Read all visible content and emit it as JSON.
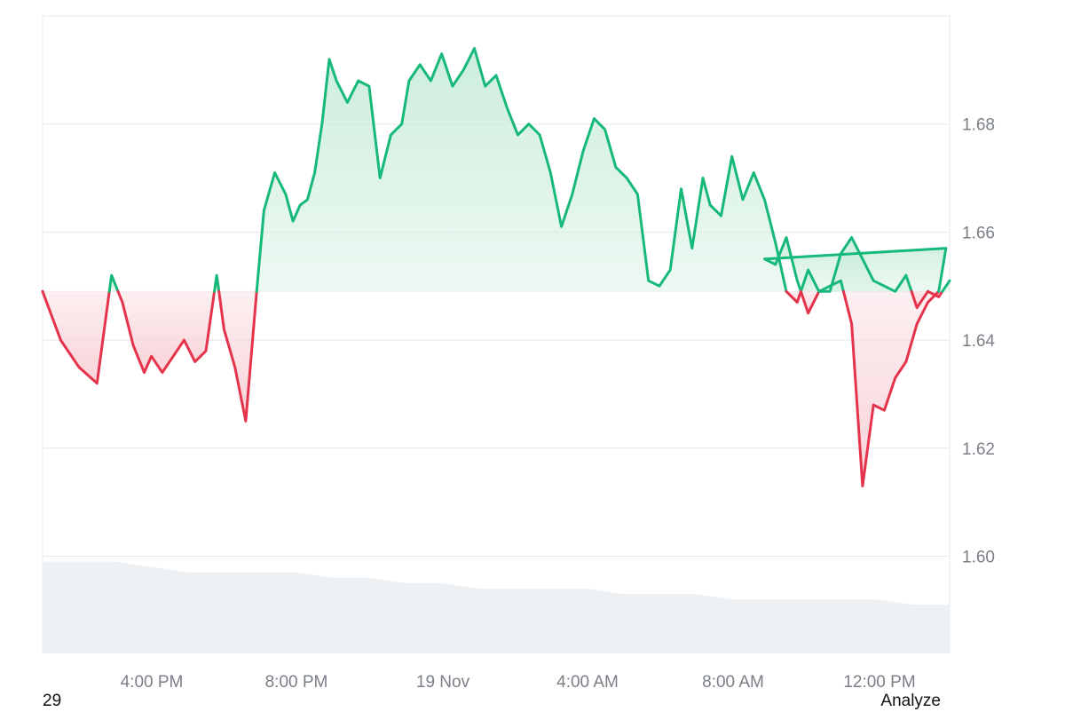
{
  "chart_data": {
    "type": "area",
    "baseline": 1.649,
    "ylim": [
      1.582,
      1.7
    ],
    "yticks": [
      "1.60",
      "1.62",
      "1.64",
      "1.66",
      "1.68"
    ],
    "xticks": [
      "4:00 PM",
      "8:00 PM",
      "19 Nov",
      "4:00 AM",
      "8:00 AM",
      "12:00 PM"
    ],
    "grid": true,
    "colors": {
      "up": "#16b979",
      "down": "#e5334b",
      "up_fill": "#cdeedd",
      "down_fill": "#f8d3d8",
      "volume": "#eef1f4",
      "grid": "#e6e8eb"
    },
    "series": [
      {
        "x": [
          0,
          0.5,
          1,
          1.5,
          1.9,
          2.2,
          2.5,
          2.8,
          3.0,
          3.3,
          3.6,
          3.9,
          4.2,
          4.5,
          4.8,
          5.0,
          5.3,
          5.6,
          5.9,
          6.1,
          6.4,
          6.7,
          6.9,
          7.1,
          7.3,
          7.5,
          7.7,
          7.9,
          8.1,
          8.4,
          8.7,
          9.0,
          9.3,
          9.6,
          9.9,
          10.1,
          10.4,
          10.7,
          11.0,
          11.3,
          11.6,
          11.9,
          12.2,
          12.5,
          12.8,
          13.1,
          13.4,
          13.7,
          14.0,
          14.3,
          14.6,
          14.9,
          15.2,
          15.5,
          15.8,
          16.1,
          16.4,
          16.7,
          17.0,
          17.3,
          17.6,
          17.9,
          18.2,
          18.4,
          18.7,
          19.0,
          19.3,
          19.6,
          19.9,
          20.2,
          20.5,
          20.8,
          21.1,
          21.4,
          21.7,
          22.0,
          22.3,
          22.6,
          22.9,
          23.2,
          23.5,
          23.8,
          24.1,
          24.4,
          24.7,
          24.9
        ],
        "y": [
          1.649,
          1.64,
          1.635,
          1.632,
          1.652,
          1.647,
          1.639,
          1.634,
          1.637,
          1.634,
          1.637,
          1.64,
          1.636,
          1.638,
          1.652,
          1.642,
          1.635,
          1.625,
          1.649,
          1.664,
          1.671,
          1.667,
          1.662,
          1.665,
          1.666,
          1.671,
          1.68,
          1.692,
          1.688,
          1.684,
          1.688,
          1.687,
          1.67,
          1.678,
          1.68,
          1.688,
          1.691,
          1.688,
          1.693,
          1.687,
          1.69,
          1.694,
          1.687,
          1.689,
          1.683,
          1.678,
          1.68,
          1.678,
          1.671,
          1.661,
          1.667,
          1.675,
          1.681,
          1.679,
          1.672,
          1.67,
          1.667,
          1.651,
          1.65,
          1.653,
          1.668,
          1.657,
          1.67,
          1.665,
          1.663,
          1.674,
          1.666,
          1.671,
          1.666,
          1.658,
          1.649,
          1.647,
          1.653,
          1.649,
          1.65,
          1.651,
          1.643,
          1.613,
          1.628,
          1.627,
          1.633,
          1.636,
          1.643,
          1.647,
          1.649,
          1.657
        ],
        "x2": [
          19.6,
          19.9,
          20.2,
          20.5,
          20.8,
          21.1,
          21.4,
          21.7,
          22.0,
          22.3,
          22.6,
          22.9,
          23.2,
          23.5,
          23.8,
          24.1,
          24.4,
          24.7,
          25.0
        ],
        "y2": [
          1.657,
          1.655,
          1.654,
          1.659,
          1.651,
          1.645,
          1.649,
          1.649,
          1.656,
          1.659,
          1.655,
          1.651,
          1.65,
          1.649,
          1.652,
          1.646,
          1.649,
          1.648,
          1.651
        ]
      }
    ],
    "volume": [
      1.599,
      1.599,
      1.599,
      1.598,
      1.597,
      1.597,
      1.597,
      1.597,
      1.596,
      1.596,
      1.595,
      1.595,
      1.594,
      1.594,
      1.594,
      1.594,
      1.593,
      1.593,
      1.593,
      1.592,
      1.592,
      1.592,
      1.592,
      1.592,
      1.591,
      1.591
    ]
  },
  "footer": {
    "left": "29",
    "right": "Analyze"
  }
}
